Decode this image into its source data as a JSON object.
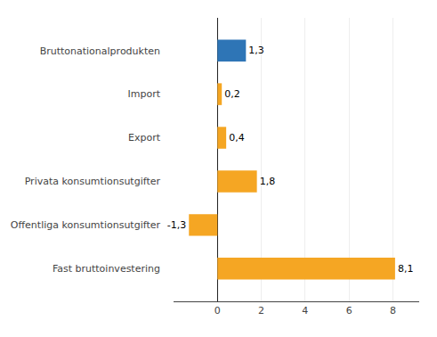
{
  "chart_data": {
    "type": "bar",
    "orientation": "horizontal",
    "categories": [
      "Fast bruttoinvestering",
      "Offentliga konsumtionsutgifter",
      "Privata konsumtionsutgifter",
      "Export",
      "Import",
      "Bruttonationalprodukten"
    ],
    "values": [
      8.1,
      -1.3,
      1.8,
      0.4,
      0.2,
      1.3
    ],
    "value_labels": [
      "8,1",
      "-1,3",
      "1,8",
      "0,4",
      "0,2",
      "1,3"
    ],
    "data_labels": true,
    "colors": [
      "#f5a623",
      "#f5a623",
      "#f5a623",
      "#f5a623",
      "#f5a623",
      "#2e75b6"
    ],
    "xlim": [
      -2.0,
      9.2
    ],
    "xticks": [
      0,
      2,
      4,
      6,
      8
    ],
    "grid": true
  }
}
